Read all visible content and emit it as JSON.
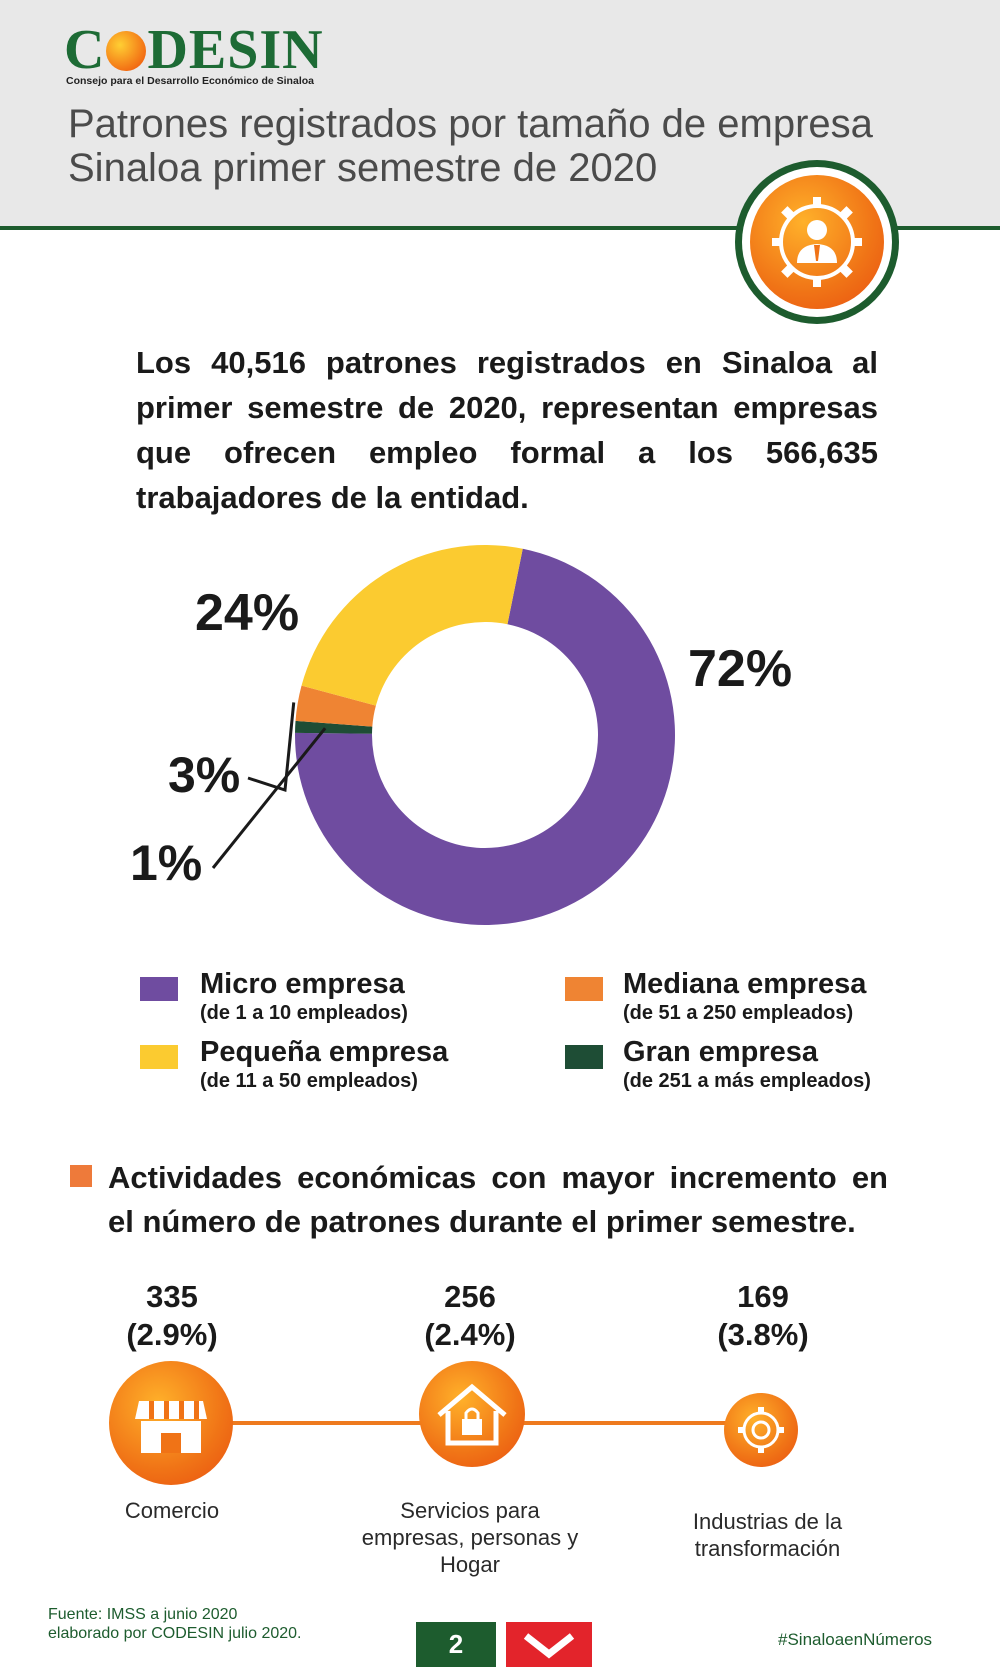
{
  "header": {
    "logo_text_a": "C",
    "logo_text_b": "DESIN",
    "logo_subtitle": "Consejo para el Desarrollo Económico de Sinaloa",
    "title_line1": "Patrones registrados por tamaño de empresa",
    "title_line2": "Sinaloa primer semestre de 2020",
    "badge_icon": "gear-person-icon"
  },
  "intro": "Los 40,516 patrones registrados en  Sinaloa al primer semestre de 2020, representan empresas que ofrecen empleo formal a los 566,635 trabajadores de la entidad.",
  "chart_data": {
    "type": "pie",
    "donut": true,
    "slices": [
      {
        "label": "Micro empresa",
        "range": "(de 1 a 10 empleados)",
        "value": 72,
        "display": "72%",
        "color": "#6f4ca0"
      },
      {
        "label": "Gran empresa",
        "range": "(de 251 a más empleados)",
        "value": 1,
        "display": "1%",
        "color": "#1e4d35"
      },
      {
        "label": "Mediana empresa",
        "range": "(de 51 a 250 empleados)",
        "value": 3,
        "display": "3%",
        "color": "#ef8433"
      },
      {
        "label": "Pequeña empresa",
        "range": "(de 11 a 50 empleados)",
        "value": 24,
        "display": "24%",
        "color": "#fbcb30"
      }
    ],
    "legend_placement": "bottom"
  },
  "section": {
    "title": "Actividades económicas con mayor incremento en el número de patrones durante el primer semestre.",
    "activities": [
      {
        "value": "335",
        "pct": "(2.9%)",
        "label": "Comercio",
        "icon": "storefront-icon"
      },
      {
        "value": "256",
        "pct": "(2.4%)",
        "label": "Servicios para empresas, personas y Hogar",
        "icon": "house-lock-icon"
      },
      {
        "value": "169",
        "pct": "(3.8%)",
        "label": "Industrias de la transformación",
        "icon": "gear-icon"
      }
    ]
  },
  "footer": {
    "source_line1": "Fuente: IMSS a junio 2020",
    "source_line2": "elaborado por CODESIN julio 2020.",
    "page_number": "2",
    "hashtag": "#SinaloaenNúmeros",
    "next_icon": "chevron-down-icon"
  },
  "colors": {
    "brand_green": "#1d5c2e",
    "accent_orange": "#ee7a1e",
    "header_bg": "#e8e8e8"
  }
}
